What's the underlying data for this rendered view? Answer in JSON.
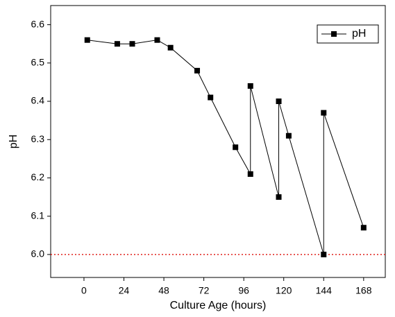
{
  "chart_data": {
    "type": "line",
    "x": [
      2,
      20,
      29,
      44,
      52,
      68,
      76,
      91,
      100,
      100,
      117,
      117,
      123,
      144,
      144,
      168
    ],
    "series": [
      {
        "name": "pH",
        "color": "#000000",
        "values": [
          6.56,
          6.55,
          6.55,
          6.56,
          6.54,
          6.48,
          6.41,
          6.28,
          6.21,
          6.44,
          6.15,
          6.4,
          6.31,
          6.0,
          6.37,
          6.07
        ]
      }
    ],
    "x_label": "Culture Age (hours)",
    "y_label": "pH",
    "xlim": [
      -20,
      181
    ],
    "xticks": [
      0,
      24,
      48,
      72,
      96,
      120,
      144,
      168
    ],
    "ylim": [
      5.94,
      6.65
    ],
    "yticks": [
      {
        "value": 6,
        "label": "6.0"
      },
      6.1,
      6.2,
      6.3,
      6.4,
      6.5,
      6.6
    ],
    "reference_line": {
      "value": 6,
      "color": "#e0201b"
    },
    "legend": "top-right"
  }
}
